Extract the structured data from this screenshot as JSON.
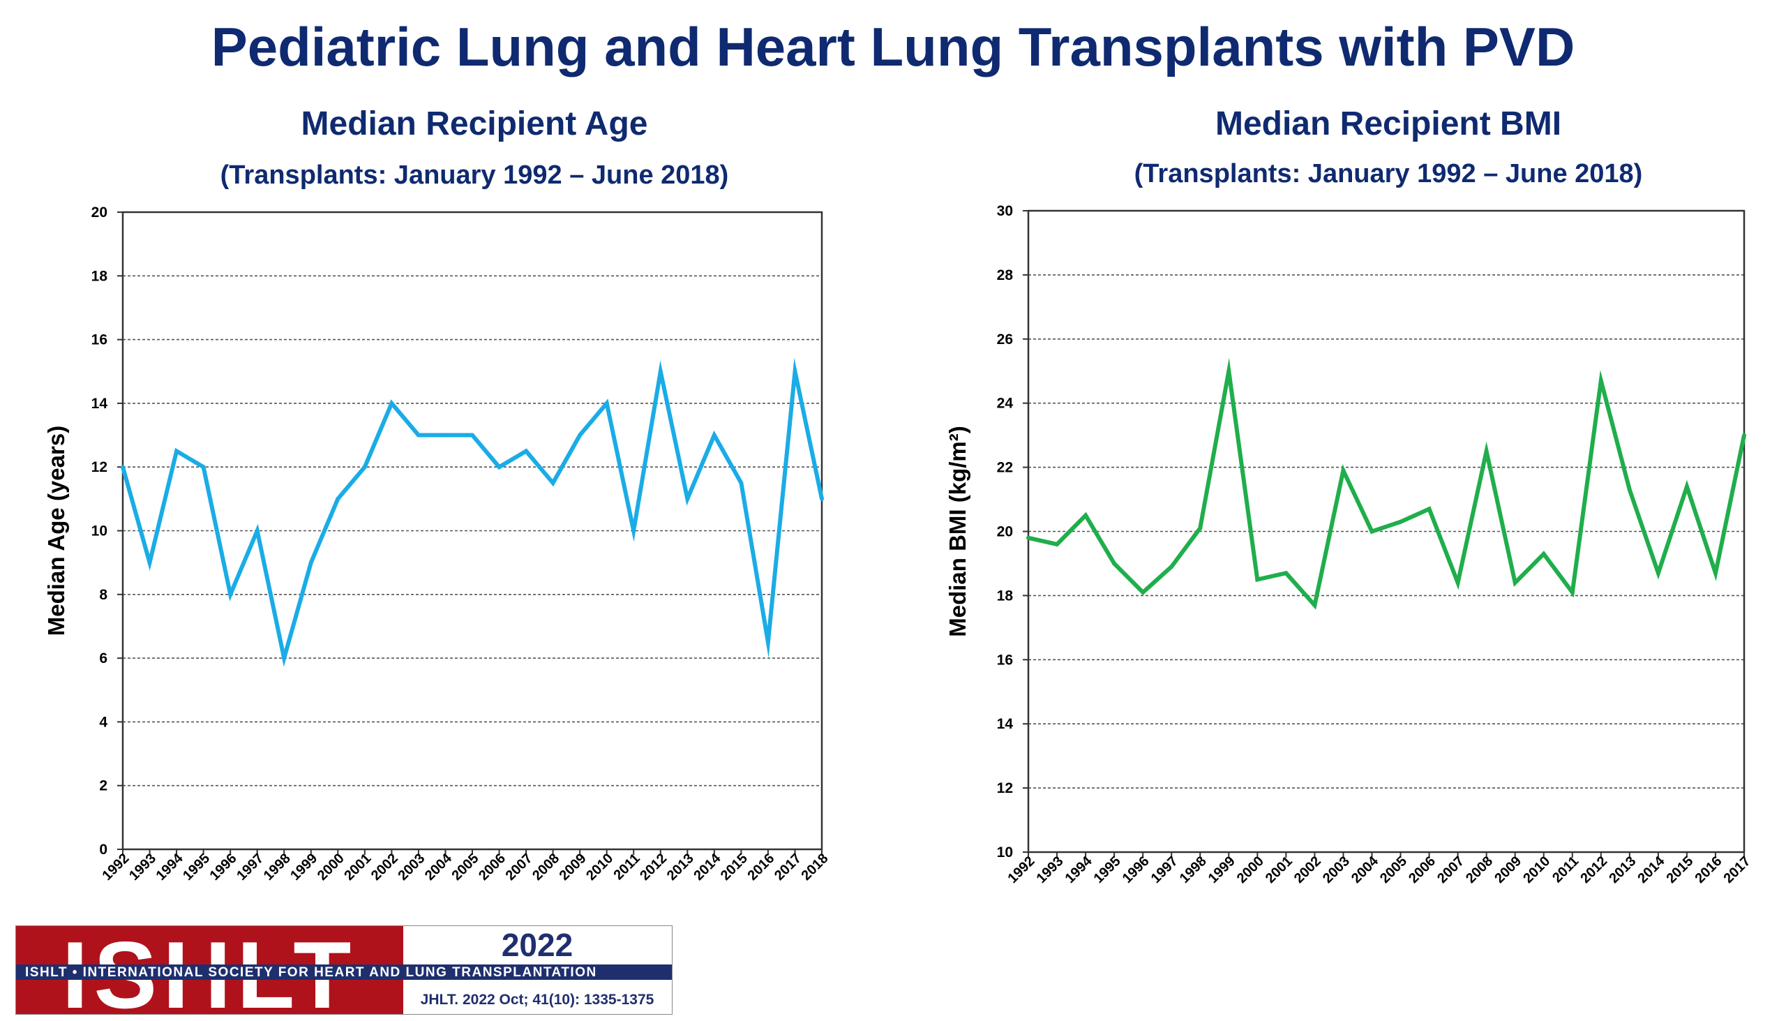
{
  "page": {
    "title": "Pediatric Lung and Heart Lung Transplants with PVD"
  },
  "charts": [
    {
      "title": "Median Recipient Age",
      "subtitle": "(Transplants: January 1992 – June 2018)"
    },
    {
      "title": "Median Recipient BMI",
      "subtitle": "(Transplants: January 1992 – June 2018)"
    }
  ],
  "chart_data": [
    {
      "type": "line",
      "title": "Median Recipient Age",
      "subtitle": "(Transplants: January 1992 – June 2018)",
      "xlabel": "",
      "ylabel": "Median Age (years)",
      "ylim": [
        0,
        20
      ],
      "yticks": [
        "0",
        "2",
        "4",
        "6",
        "8",
        "10",
        "12",
        "14",
        "16",
        "18",
        "20"
      ],
      "grid": true,
      "categories": [
        "1992",
        "1993",
        "1994",
        "1995",
        "1996",
        "1997",
        "1998",
        "1999",
        "2000",
        "2001",
        "2002",
        "2003",
        "2004",
        "2005",
        "2006",
        "2007",
        "2008",
        "2009",
        "2010",
        "2011",
        "2012",
        "2013",
        "2014",
        "2015",
        "2016",
        "2017",
        "2018"
      ],
      "series": [
        {
          "color": "#1aace6",
          "values": [
            12,
            9,
            12.5,
            12,
            8,
            10,
            6,
            9,
            11,
            12,
            14,
            13,
            13,
            13,
            12,
            12.5,
            11.5,
            13,
            14,
            10,
            15,
            11,
            13,
            11.5,
            6.5,
            15,
            11
          ]
        }
      ]
    },
    {
      "type": "line",
      "title": "Median Recipient BMI",
      "subtitle": "(Transplants: January 1992 – June 2018)",
      "xlabel": "",
      "ylabel": "Median BMI (kg/m²)",
      "ylim": [
        10,
        30
      ],
      "yticks": [
        "10",
        "12",
        "14",
        "16",
        "18",
        "20",
        "22",
        "24",
        "26",
        "28",
        "30"
      ],
      "grid": true,
      "categories": [
        "1992",
        "1993",
        "1994",
        "1995",
        "1996",
        "1997",
        "1998",
        "1999",
        "2000",
        "2001",
        "2002",
        "2003",
        "2004",
        "2005",
        "2006",
        "2007",
        "2008",
        "2009",
        "2010",
        "2011",
        "2012",
        "2013",
        "2014",
        "2015",
        "2016",
        "2017"
      ],
      "series": [
        {
          "color": "#1fae4b",
          "values": [
            19.8,
            19.6,
            20.5,
            19.0,
            18.1,
            18.9,
            20.1,
            25.0,
            18.5,
            18.7,
            17.7,
            21.9,
            20.0,
            20.3,
            20.7,
            18.4,
            22.5,
            18.4,
            19.3,
            18.1,
            24.7,
            21.3,
            18.7,
            21.4,
            18.7,
            23.0
          ]
        }
      ]
    }
  ],
  "logo": {
    "brand": "ISHLT",
    "band_text": "ISHLT • INTERNATIONAL SOCIETY FOR HEART AND LUNG TRANSPLANTATION",
    "year": "2022",
    "citation": "JHLT. 2022 Oct; 41(10): 1335-1375",
    "colors": {
      "red": "#b0121b",
      "navy": "#1f2f6e"
    }
  }
}
